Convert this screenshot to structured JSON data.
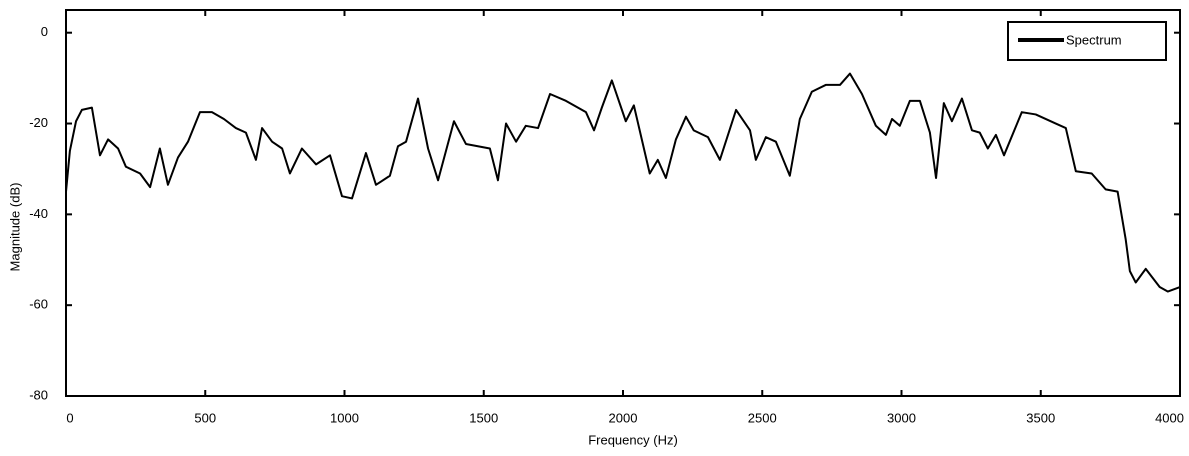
{
  "chart_data": {
    "type": "line",
    "x_label": "Frequency (Hz)",
    "y_label": "Magnitude (dB)",
    "x": [
      0,
      14,
      36,
      57,
      93,
      122,
      151,
      187,
      215,
      266,
      302,
      337,
      366,
      402,
      438,
      481,
      524,
      567,
      610,
      646,
      682,
      704,
      740,
      776,
      804,
      847,
      898,
      948,
      991,
      1027,
      1077,
      1113,
      1163,
      1192,
      1221,
      1264,
      1300,
      1336,
      1393,
      1436,
      1522,
      1551,
      1580,
      1616,
      1651,
      1695,
      1738,
      1795,
      1867,
      1896,
      1924,
      1960,
      2010,
      2039,
      2096,
      2125,
      2154,
      2190,
      2226,
      2254,
      2305,
      2348,
      2406,
      2456,
      2477,
      2513,
      2549,
      2599,
      2635,
      2678,
      2728,
      2779,
      2815,
      2858,
      2908,
      2944,
      2966,
      2994,
      3030,
      3066,
      3102,
      3124,
      3152,
      3181,
      3217,
      3253,
      3281,
      3310,
      3339,
      3368,
      3432,
      3482,
      3554,
      3590,
      3626,
      3683,
      3733,
      3776,
      3805,
      3820,
      3841,
      3877,
      3927,
      3956,
      4000
    ],
    "series": [
      {
        "name": "Spectrum",
        "color": "#000000",
        "values": [
          -35,
          -26,
          -19.5,
          -17,
          -16.5,
          -27,
          -23.5,
          -25.5,
          -29.5,
          -31,
          -34,
          -25.5,
          -33.5,
          -27.5,
          -24,
          -17.5,
          -17.5,
          -19,
          -21,
          -22,
          -28,
          -21,
          -24,
          -25.5,
          -31,
          -25.5,
          -29,
          -27,
          -36,
          -36.5,
          -26.5,
          -33.5,
          -31.5,
          -25,
          -24,
          -14.5,
          -25.5,
          -32.5,
          -19.5,
          -24.5,
          -25.5,
          -32.5,
          -20,
          -24,
          -20.5,
          -21,
          -13.5,
          -15,
          -17.5,
          -21.5,
          -16.5,
          -10.5,
          -19.5,
          -16,
          -31,
          -28,
          -32,
          -23.5,
          -18.5,
          -21.5,
          -23,
          -28,
          -17,
          -21.5,
          -28,
          -23,
          -24,
          -31.5,
          -19,
          -13,
          -11.5,
          -11.5,
          -9,
          -13.5,
          -20.5,
          -22.5,
          -19,
          -20.5,
          -15,
          -15,
          -22,
          -32,
          -15.5,
          -19.5,
          -14.5,
          -21.5,
          -22,
          -25.5,
          -22.5,
          -27,
          -17.5,
          -18,
          -20,
          -21,
          -30.5,
          -31,
          -34.5,
          -35,
          -45.5,
          -52.5,
          -55,
          -52,
          -56,
          -57,
          -56
        ]
      }
    ],
    "xlim": [
      0,
      4000
    ],
    "xticks": [
      0,
      500,
      1000,
      1500,
      2000,
      2500,
      3000,
      3500,
      4000
    ],
    "ylim": [
      -80,
      5
    ],
    "yticks": [
      0,
      -20,
      -40,
      -60,
      -80
    ],
    "legend": "upper right",
    "grid": false
  }
}
